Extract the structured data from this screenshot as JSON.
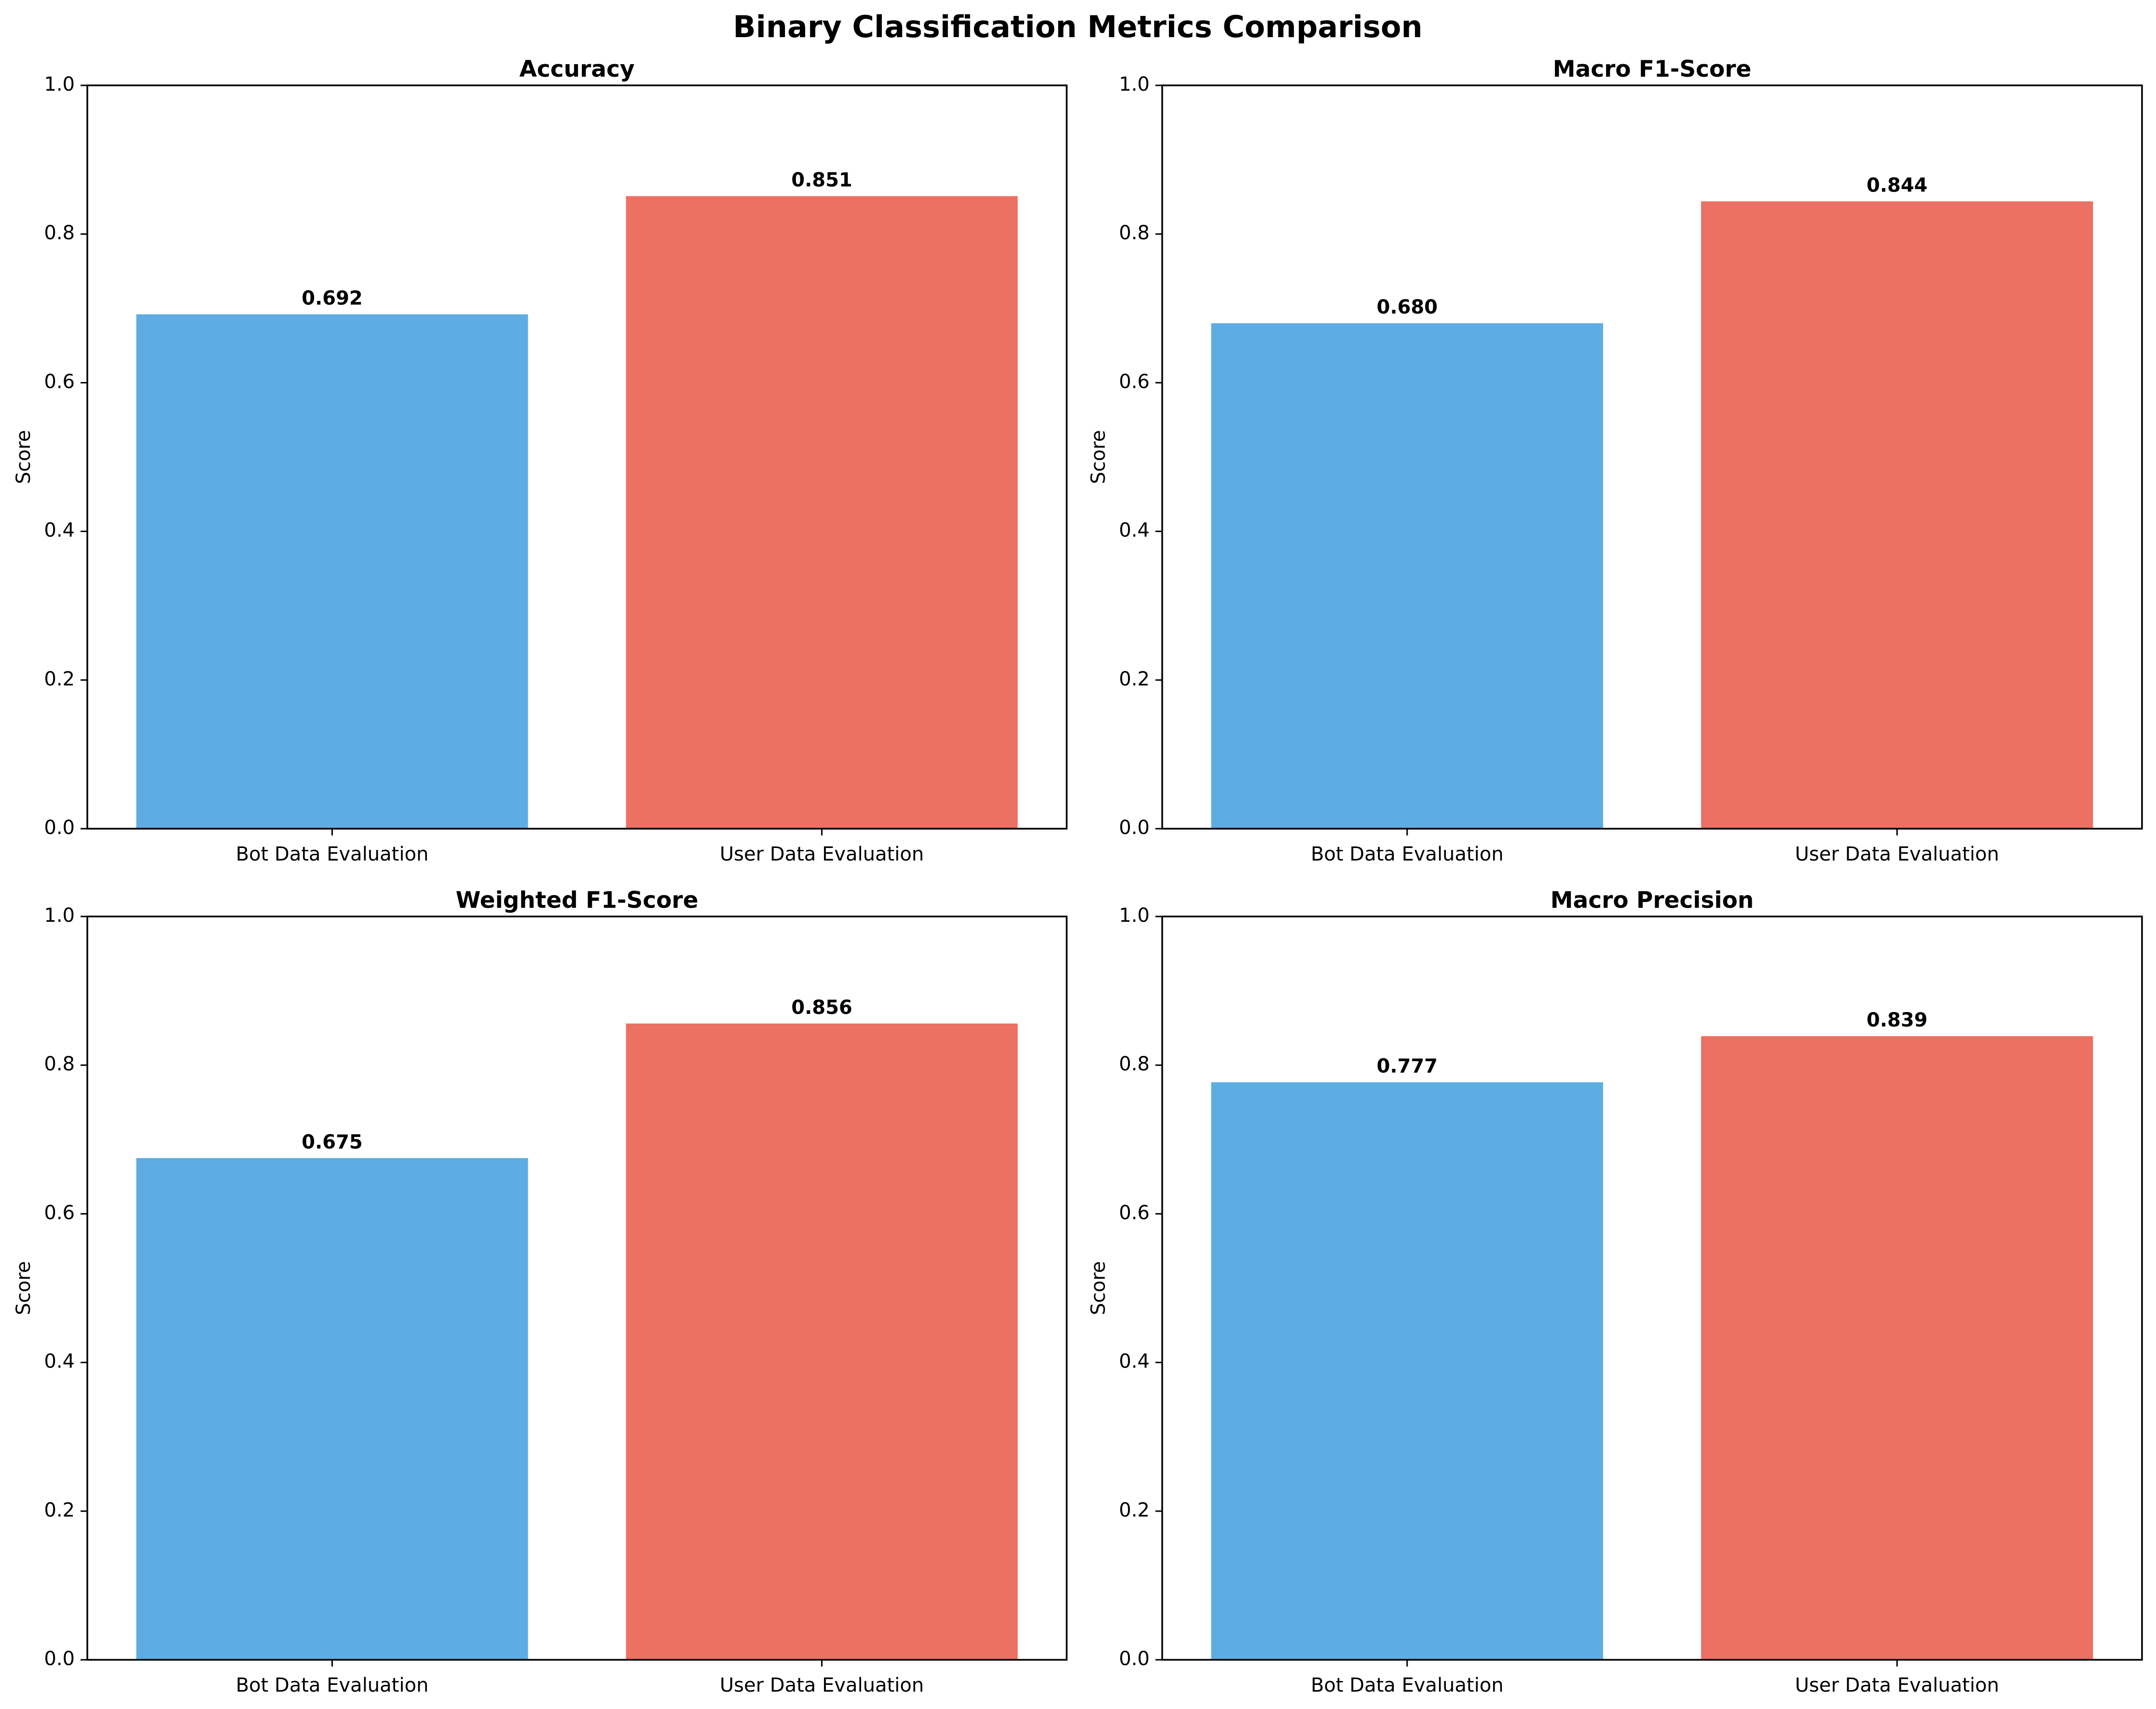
{
  "figure": {
    "title": "Binary Classification Metrics Comparison"
  },
  "colors": {
    "bot": "#5DADE2",
    "user": "#EC7063",
    "axis": "#000000",
    "text": "#000000"
  },
  "chart_data": [
    {
      "type": "bar",
      "title": "Accuracy",
      "xlabel": "",
      "ylabel": "Score",
      "categories": [
        "Bot Data Evaluation",
        "User Data Evaluation"
      ],
      "values": [
        0.692,
        0.851
      ],
      "value_labels": [
        "0.692",
        "0.851"
      ],
      "ylim": [
        0,
        1.0
      ],
      "yticks": [
        "0.0",
        "0.2",
        "0.4",
        "0.6",
        "0.8",
        "1.0"
      ],
      "grid": false
    },
    {
      "type": "bar",
      "title": "Macro F1-Score",
      "xlabel": "",
      "ylabel": "Score",
      "categories": [
        "Bot Data Evaluation",
        "User Data Evaluation"
      ],
      "values": [
        0.68,
        0.844
      ],
      "value_labels": [
        "0.680",
        "0.844"
      ],
      "ylim": [
        0,
        1.0
      ],
      "yticks": [
        "0.0",
        "0.2",
        "0.4",
        "0.6",
        "0.8",
        "1.0"
      ],
      "grid": false
    },
    {
      "type": "bar",
      "title": "Weighted F1-Score",
      "xlabel": "",
      "ylabel": "Score",
      "categories": [
        "Bot Data Evaluation",
        "User Data Evaluation"
      ],
      "values": [
        0.675,
        0.856
      ],
      "value_labels": [
        "0.675",
        "0.856"
      ],
      "ylim": [
        0,
        1.0
      ],
      "yticks": [
        "0.0",
        "0.2",
        "0.4",
        "0.6",
        "0.8",
        "1.0"
      ],
      "grid": false
    },
    {
      "type": "bar",
      "title": "Macro Precision",
      "xlabel": "",
      "ylabel": "Score",
      "categories": [
        "Bot Data Evaluation",
        "User Data Evaluation"
      ],
      "values": [
        0.777,
        0.839
      ],
      "value_labels": [
        "0.777",
        "0.839"
      ],
      "ylim": [
        0,
        1.0
      ],
      "yticks": [
        "0.0",
        "0.2",
        "0.4",
        "0.6",
        "0.8",
        "1.0"
      ],
      "grid": false
    }
  ]
}
